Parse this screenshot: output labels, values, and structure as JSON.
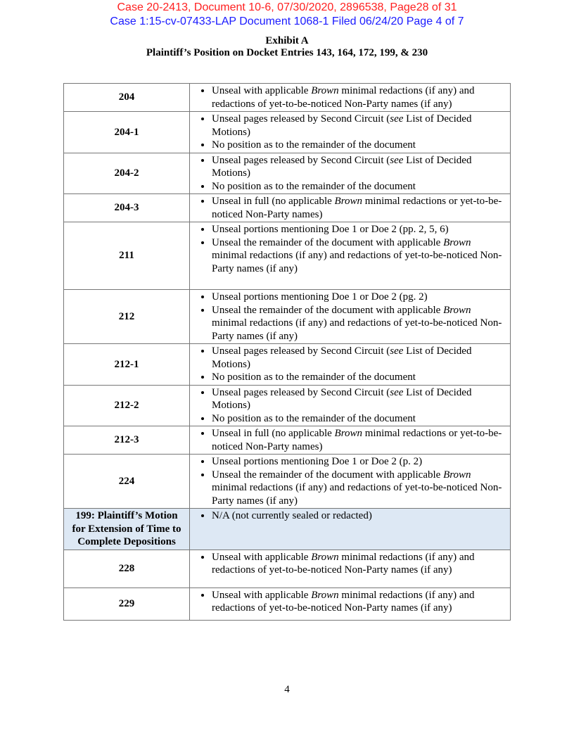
{
  "stamps": {
    "appeal": "Case 20-2413, Document 10-6, 07/30/2020, 2896538, Page28 of 31",
    "district": "Case 1:15-cv-07433-LAP   Document 1068-1   Filed 06/24/20   Page 4 of 7"
  },
  "title": "Exhibit A",
  "subtitle": "Plaintiff’s Position on Docket Entries 143, 164, 172, 199, & 230",
  "rows": [
    {
      "entry": "204",
      "items": [
        "Unseal with applicable <i>Brown</i> minimal redactions (if any) and redactions of yet-to-be-noticed Non-Party names (if any)"
      ]
    },
    {
      "entry": "204-1",
      "items": [
        "Unseal pages released by Second Circuit (<i>see</i> List of Decided Motions)",
        "No position as to the remainder of the document"
      ]
    },
    {
      "entry": "204-2",
      "items": [
        "Unseal pages released by Second Circuit (<i>see</i> List of Decided Motions)",
        "No position as to the remainder of the document"
      ]
    },
    {
      "entry": "204-3",
      "items": [
        "Unseal in full (no applicable <i>Brown</i> minimal redactions or yet-to-be-noticed Non-Party names)"
      ]
    },
    {
      "entry": "211",
      "items": [
        "Unseal portions mentioning Doe 1 or Doe 2 (pp. 2, 5, 6)",
        "Unseal the remainder of the document with applicable <i>Brown</i> minimal redactions (if any) and redactions of yet-to-be-noticed Non-Party names (if any)"
      ],
      "h": 96
    },
    {
      "entry": "212",
      "items": [
        "Unseal portions mentioning Doe 1 or Doe 2 (pg. 2)",
        "Unseal the remainder of the document with applicable <i>Brown</i> minimal redactions (if any) and redactions of yet-to-be-noticed Non-Party names (if any)"
      ]
    },
    {
      "entry": "212-1",
      "items": [
        "Unseal pages released by Second Circuit (<i>see</i> List of Decided Motions)",
        "No position as to the remainder of the document"
      ]
    },
    {
      "entry": "212-2",
      "items": [
        "Unseal pages released by Second Circuit (<i>see</i> List of Decided Motions)",
        "No position as to the remainder of the document"
      ]
    },
    {
      "entry": "212-3",
      "items": [
        "Unseal in full (no applicable <i>Brown</i> minimal redactions or yet-to-be-noticed Non-Party names)"
      ]
    },
    {
      "entry": "224",
      "items": [
        "Unseal portions mentioning Doe 1 or Doe 2 (p. 2)",
        "Unseal the remainder of the document with applicable <i>Brown</i> minimal redactions (if any) and redactions of yet-to-be-noticed Non-Party names (if any)"
      ]
    },
    {
      "entry": "199: Plaintiff’s Motion for Extension of Time to Complete Depositions",
      "items": [
        "N/A (not currently sealed or redacted)"
      ],
      "header": true
    },
    {
      "entry": "228",
      "items": [
        "Unseal with applicable <i>Brown</i> minimal redactions (if any) and redactions of yet-to-be-noticed Non-Party names (if any)"
      ],
      "h": 54
    },
    {
      "entry": "229",
      "items": [
        "Unseal with applicable <i>Brown</i> minimal redactions (if any) and redactions of yet-to-be-noticed Non-Party names (if any)"
      ],
      "h": 46
    }
  ],
  "page_number": "4"
}
